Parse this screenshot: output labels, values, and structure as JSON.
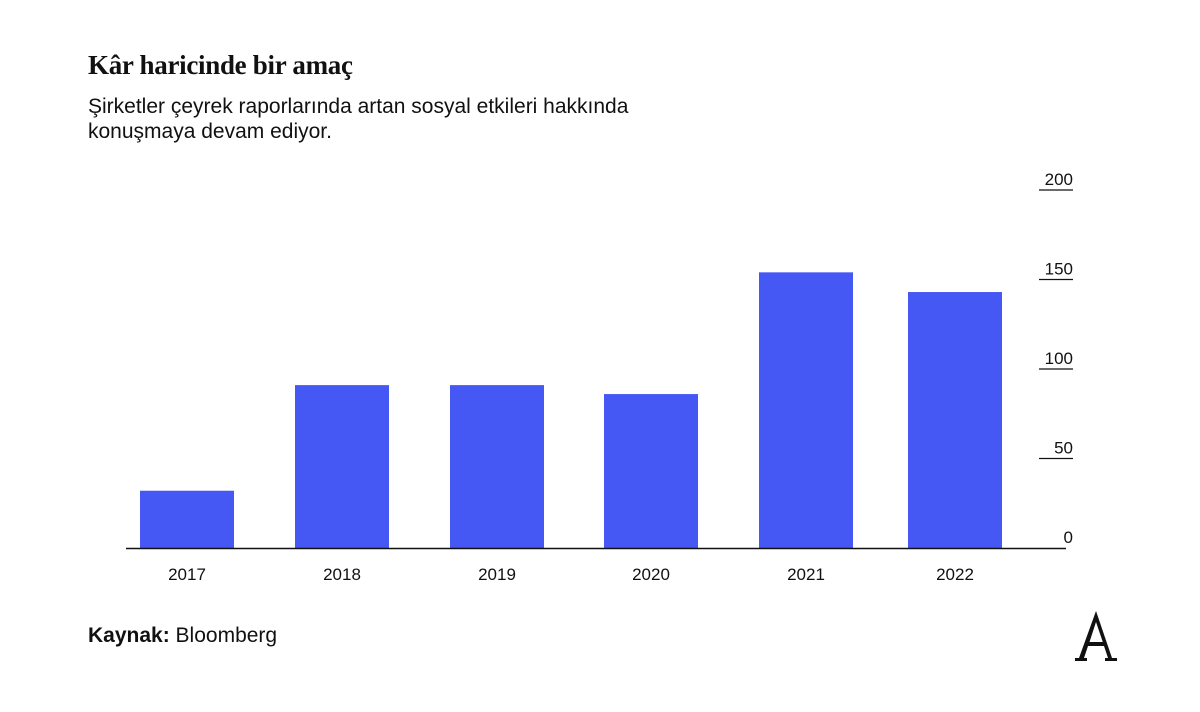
{
  "header": {
    "title": "Kâr haricinde bir amaç",
    "subtitle": "Şirketler çeyrek raporlarında artan sosyal etkileri hakkında konuşmaya devam ediyor."
  },
  "source": {
    "label": "Kaynak:",
    "value": "Bloomberg"
  },
  "logo": {
    "glyph": "A"
  },
  "colors": {
    "bar": "#4658F3",
    "axis": "#111111",
    "text": "#111111"
  },
  "chart_data": {
    "type": "bar",
    "categories": [
      "2017",
      "2018",
      "2019",
      "2020",
      "2021",
      "2022"
    ],
    "values": [
      32,
      91,
      91,
      86,
      154,
      143
    ],
    "title": "Kâr haricinde bir amaç",
    "ylim": [
      0,
      200
    ],
    "yticks": [
      0,
      50,
      100,
      150,
      200
    ],
    "y_axis_position": "right",
    "grid": false,
    "legend": "none"
  }
}
